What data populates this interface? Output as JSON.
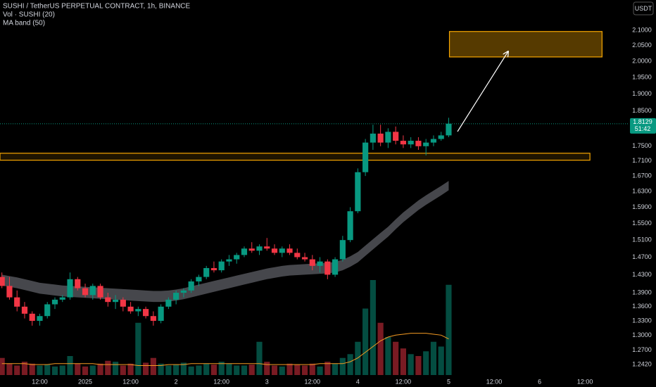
{
  "chart_data": {
    "type": "candlestick",
    "title": "SUSHI / TetherUS PERPETUAL CONTRACT, 1h, BINANCE",
    "legend": [
      "Vol · SUSHI (20)",
      "MA band (50)"
    ],
    "currency": "USDT",
    "countdown": "51:42",
    "log_scale": true,
    "up_color": "#089981",
    "down_color": "#f23645",
    "band_color": "#5d5f66",
    "volume_ma_color": "#f59b22",
    "zone_color": "#f7a600",
    "xlim": [
      -0.5,
      165.5
    ],
    "xticks": [
      {
        "value": 10,
        "label": "12:00"
      },
      {
        "value": 22,
        "label": "2025"
      },
      {
        "value": 34,
        "label": "12:00"
      },
      {
        "value": 46,
        "label": "2"
      },
      {
        "value": 58,
        "label": "12:00"
      },
      {
        "value": 70,
        "label": "3"
      },
      {
        "value": 82,
        "label": "12:00"
      },
      {
        "value": 94,
        "label": "4"
      },
      {
        "value": 106,
        "label": "12:00"
      },
      {
        "value": 118,
        "label": "5"
      },
      {
        "value": 130,
        "label": "12:00"
      },
      {
        "value": 142,
        "label": "6"
      },
      {
        "value": 154,
        "label": "12:00"
      }
    ],
    "ylim": [
      1.212,
      2.202
    ],
    "yticks": [
      {
        "value": 1.242,
        "label": "1.2420"
      },
      {
        "value": 1.27,
        "label": "1.2700"
      },
      {
        "value": 1.3,
        "label": "1.3000"
      },
      {
        "value": 1.33,
        "label": "1.3300"
      },
      {
        "value": 1.36,
        "label": "1.3600"
      },
      {
        "value": 1.39,
        "label": "1.3900"
      },
      {
        "value": 1.43,
        "label": "1.4300"
      },
      {
        "value": 1.47,
        "label": "1.4700"
      },
      {
        "value": 1.51,
        "label": "1.5100"
      },
      {
        "value": 1.55,
        "label": "1.5500"
      },
      {
        "value": 1.59,
        "label": "1.5900"
      },
      {
        "value": 1.63,
        "label": "1.6300"
      },
      {
        "value": 1.67,
        "label": "1.6700"
      },
      {
        "value": 1.71,
        "label": "1.7100"
      },
      {
        "value": 1.75,
        "label": "1.7500"
      },
      {
        "value": 1.85,
        "label": "1.8500"
      },
      {
        "value": 1.9,
        "label": "1.9000"
      },
      {
        "value": 1.95,
        "label": "1.9500"
      },
      {
        "value": 2.0,
        "label": "2.0000"
      },
      {
        "value": 2.05,
        "label": "2.0500"
      },
      {
        "value": 2.1,
        "label": "2.1000"
      }
    ],
    "vlim": [
      0,
      100
    ],
    "x": [
      0,
      2,
      4,
      6,
      8,
      10,
      12,
      14,
      16,
      18,
      20,
      22,
      24,
      26,
      28,
      30,
      32,
      34,
      36,
      38,
      40,
      42,
      44,
      46,
      48,
      50,
      52,
      54,
      56,
      58,
      60,
      62,
      64,
      66,
      68,
      70,
      72,
      74,
      76,
      78,
      80,
      82,
      84,
      86,
      88,
      90,
      92,
      94,
      96,
      98,
      100,
      102,
      104,
      106,
      108,
      110,
      112,
      114,
      116,
      118
    ],
    "open": [
      1.425,
      1.405,
      1.38,
      1.36,
      1.345,
      1.33,
      1.34,
      1.365,
      1.375,
      1.38,
      1.42,
      1.4,
      1.385,
      1.405,
      1.38,
      1.37,
      1.375,
      1.36,
      1.35,
      1.355,
      1.34,
      1.33,
      1.36,
      1.375,
      1.39,
      1.395,
      1.415,
      1.425,
      1.445,
      1.44,
      1.46,
      1.465,
      1.475,
      1.49,
      1.485,
      1.495,
      1.49,
      1.48,
      1.49,
      1.48,
      1.47,
      1.465,
      1.45,
      1.46,
      1.43,
      1.465,
      1.51,
      1.58,
      1.68,
      1.76,
      1.785,
      1.76,
      1.79,
      1.765,
      1.755,
      1.765,
      1.75,
      1.76,
      1.77,
      1.78
    ],
    "high": [
      1.435,
      1.425,
      1.395,
      1.37,
      1.35,
      1.345,
      1.37,
      1.38,
      1.385,
      1.435,
      1.425,
      1.41,
      1.41,
      1.41,
      1.39,
      1.385,
      1.38,
      1.37,
      1.36,
      1.36,
      1.35,
      1.365,
      1.38,
      1.395,
      1.4,
      1.42,
      1.43,
      1.45,
      1.46,
      1.465,
      1.475,
      1.48,
      1.495,
      1.505,
      1.5,
      1.515,
      1.5,
      1.495,
      1.5,
      1.49,
      1.48,
      1.475,
      1.47,
      1.465,
      1.47,
      1.52,
      1.59,
      1.69,
      1.77,
      1.81,
      1.81,
      1.8,
      1.805,
      1.78,
      1.775,
      1.775,
      1.77,
      1.78,
      1.79,
      1.83
    ],
    "low": [
      1.4,
      1.375,
      1.35,
      1.335,
      1.32,
      1.32,
      1.335,
      1.355,
      1.37,
      1.375,
      1.395,
      1.38,
      1.375,
      1.375,
      1.36,
      1.355,
      1.35,
      1.345,
      1.34,
      1.335,
      1.32,
      1.325,
      1.355,
      1.365,
      1.38,
      1.39,
      1.405,
      1.42,
      1.435,
      1.435,
      1.45,
      1.455,
      1.47,
      1.48,
      1.475,
      1.485,
      1.475,
      1.47,
      1.475,
      1.465,
      1.46,
      1.44,
      1.435,
      1.42,
      1.425,
      1.46,
      1.505,
      1.575,
      1.67,
      1.74,
      1.75,
      1.745,
      1.755,
      1.745,
      1.745,
      1.74,
      1.725,
      1.75,
      1.765,
      1.775
    ],
    "close": [
      1.405,
      1.38,
      1.36,
      1.345,
      1.33,
      1.34,
      1.365,
      1.375,
      1.38,
      1.42,
      1.4,
      1.385,
      1.405,
      1.38,
      1.37,
      1.375,
      1.36,
      1.35,
      1.355,
      1.34,
      1.33,
      1.36,
      1.375,
      1.39,
      1.395,
      1.415,
      1.425,
      1.445,
      1.44,
      1.46,
      1.465,
      1.475,
      1.49,
      1.485,
      1.495,
      1.49,
      1.48,
      1.49,
      1.48,
      1.47,
      1.465,
      1.45,
      1.46,
      1.43,
      1.465,
      1.51,
      1.58,
      1.68,
      1.76,
      1.785,
      1.76,
      1.79,
      1.765,
      1.755,
      1.765,
      1.75,
      1.76,
      1.77,
      1.78,
      1.8129
    ],
    "volume": [
      18,
      12,
      10,
      14,
      12,
      10,
      11,
      9,
      10,
      20,
      12,
      9,
      10,
      12,
      15,
      14,
      10,
      12,
      55,
      13,
      18,
      12,
      10,
      11,
      13,
      9,
      10,
      12,
      11,
      14,
      12,
      10,
      10,
      11,
      35,
      14,
      10,
      9,
      12,
      11,
      10,
      12,
      9,
      14,
      12,
      18,
      22,
      35,
      70,
      100,
      55,
      40,
      35,
      28,
      22,
      20,
      25,
      35,
      30,
      95
    ],
    "volume_ma": [
      12,
      12,
      12,
      12,
      11,
      11,
      11,
      12,
      12,
      12,
      12,
      12,
      12,
      11,
      11,
      11,
      11,
      11,
      10,
      10,
      10,
      10,
      11,
      11,
      11,
      12,
      12,
      12,
      12,
      12,
      12,
      12,
      12,
      12,
      12,
      11,
      11,
      11,
      11,
      11,
      11,
      11,
      12,
      12,
      12,
      12,
      14,
      18,
      24,
      30,
      36,
      40,
      42,
      43,
      44,
      44,
      44,
      43,
      42,
      38
    ],
    "ma_band_upper": [
      1.43,
      1.427,
      1.424,
      1.42,
      1.416,
      1.412,
      1.41,
      1.408,
      1.406,
      1.405,
      1.404,
      1.403,
      1.402,
      1.401,
      1.4,
      1.399,
      1.398,
      1.397,
      1.396,
      1.395,
      1.394,
      1.394,
      1.395,
      1.397,
      1.4,
      1.404,
      1.408,
      1.412,
      1.416,
      1.42,
      1.424,
      1.428,
      1.432,
      1.436,
      1.44,
      1.444,
      1.447,
      1.45,
      1.452,
      1.453,
      1.454,
      1.455,
      1.456,
      1.457,
      1.459,
      1.464,
      1.472,
      1.482,
      1.497,
      1.512,
      1.527,
      1.542,
      1.56,
      1.577,
      1.592,
      1.607,
      1.62,
      1.632,
      1.644,
      1.657
    ],
    "ma_band_lower": [
      1.406,
      1.403,
      1.4,
      1.396,
      1.392,
      1.388,
      1.386,
      1.384,
      1.382,
      1.381,
      1.38,
      1.379,
      1.378,
      1.377,
      1.376,
      1.375,
      1.374,
      1.373,
      1.372,
      1.371,
      1.37,
      1.37,
      1.371,
      1.373,
      1.376,
      1.38,
      1.384,
      1.388,
      1.392,
      1.396,
      1.4,
      1.404,
      1.408,
      1.412,
      1.416,
      1.42,
      1.423,
      1.426,
      1.428,
      1.429,
      1.43,
      1.431,
      1.432,
      1.433,
      1.435,
      1.44,
      1.448,
      1.458,
      1.473,
      1.488,
      1.503,
      1.518,
      1.536,
      1.553,
      1.568,
      1.583,
      1.596,
      1.608,
      1.62,
      1.633
    ],
    "zones": [
      {
        "xlim": [
          118.2,
          158.5
        ],
        "ylim": [
          2.0135,
          2.0957
        ]
      },
      {
        "xlim": [
          -0.5,
          155.3
        ],
        "ylim": [
          1.7119,
          1.7308
        ]
      }
    ]
  }
}
